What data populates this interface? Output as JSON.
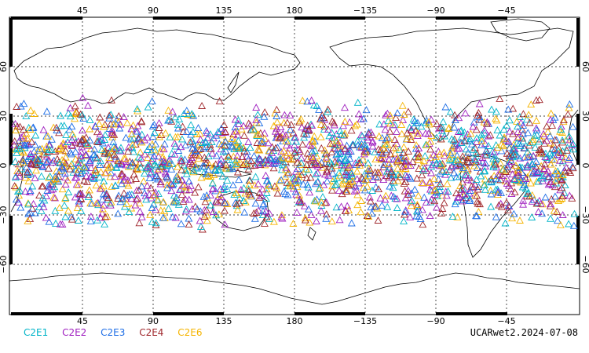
{
  "map": {
    "top_lon_labels": [
      "45",
      "90",
      "135",
      "180",
      "−135",
      "−90",
      "−45"
    ],
    "bottom_lon_labels": [
      "45",
      "90",
      "135",
      "180",
      "−135",
      "−90",
      "−45"
    ],
    "lat_labels": [
      "60",
      "30",
      "0",
      "−30",
      "−60"
    ],
    "marker_shape": "triangle-outline",
    "marker_lat_band": [
      -40,
      42
    ]
  },
  "legend": {
    "items": [
      {
        "label": "C2E1",
        "color": "#00b4c8"
      },
      {
        "label": "C2E2",
        "color": "#a020c0"
      },
      {
        "label": "C2E3",
        "color": "#1e6ee6"
      },
      {
        "label": "C2E4",
        "color": "#a0282d"
      },
      {
        "label": "C2E6",
        "color": "#f5b400"
      }
    ]
  },
  "footer": {
    "stamp": "UCARwet2.2024-07-08"
  }
}
